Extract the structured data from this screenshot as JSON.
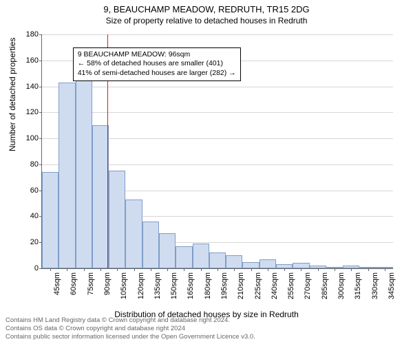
{
  "title": "9, BEAUCHAMP MEADOW, REDRUTH, TR15 2DG",
  "subtitle": "Size of property relative to detached houses in Redruth",
  "y_axis_label": "Number of detached properties",
  "x_axis_label": "Distribution of detached houses by size in Redruth",
  "footer_line1": "Contains HM Land Registry data © Crown copyright and database right 2024.",
  "footer_line2": "Contains OS data © Crown copyright and database right 2024",
  "footer_line3": "Contains public sector information licensed under the Open Government Licence v3.0.",
  "chart": {
    "type": "histogram",
    "ylim": [
      0,
      180
    ],
    "ytick_step": 20,
    "y_ticks": [
      0,
      20,
      40,
      60,
      80,
      100,
      120,
      140,
      160,
      180
    ],
    "x_labels": [
      "45sqm",
      "60sqm",
      "75sqm",
      "90sqm",
      "105sqm",
      "120sqm",
      "135sqm",
      "150sqm",
      "165sqm",
      "180sqm",
      "195sqm",
      "210sqm",
      "225sqm",
      "240sqm",
      "255sqm",
      "270sqm",
      "285sqm",
      "300sqm",
      "315sqm",
      "330sqm",
      "345sqm"
    ],
    "values": [
      74,
      143,
      145,
      110,
      75,
      53,
      36,
      27,
      17,
      19,
      12,
      10,
      5,
      7,
      3,
      4,
      2,
      1,
      2,
      1,
      1
    ],
    "bar_fill": "#cfdcf0",
    "bar_stroke": "#7f9dc9",
    "background_color": "#ffffff",
    "grid_color": "#d6d6d6",
    "axis_color": "#666666",
    "reference_line": {
      "x_value": 96,
      "x_min": 37.5,
      "x_max": 352.5,
      "color": "#ce2020"
    },
    "annotation": {
      "line1": "9 BEAUCHAMP MEADOW: 96sqm",
      "line2": "← 58% of detached houses are smaller (401)",
      "line3": "41% of semi-detached houses are larger (282) →",
      "top_fraction_from_ymax": 0.055
    },
    "label_fontsize": 12,
    "tick_fontsize": 11,
    "title_fontsize": 13
  }
}
